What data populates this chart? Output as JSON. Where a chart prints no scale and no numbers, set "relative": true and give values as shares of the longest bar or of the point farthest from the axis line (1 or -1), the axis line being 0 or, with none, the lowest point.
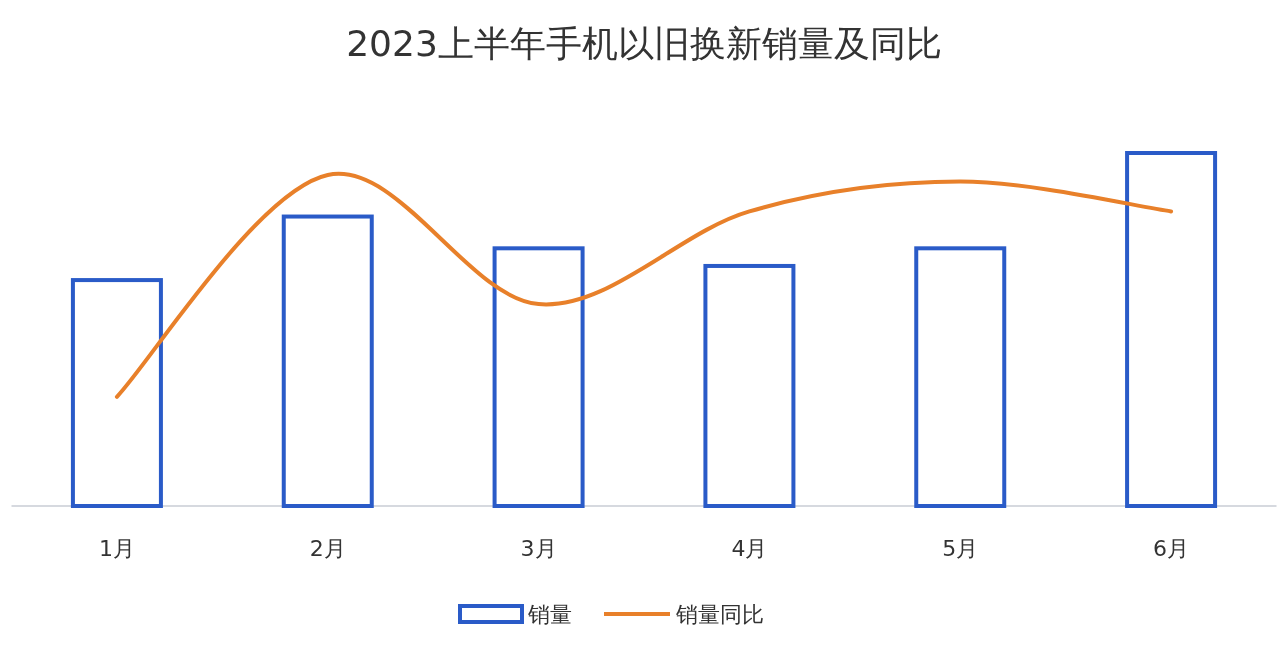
{
  "chart_data": {
    "type": "bar",
    "title": "2023上半年手机以旧换新销量及同比",
    "categories": [
      "1月",
      "2月",
      "3月",
      "4月",
      "5月",
      "6月"
    ],
    "relative": true,
    "legend": "bottom",
    "series": [
      {
        "name": "销量",
        "color": "#2a5bc8",
        "values": [
          0.64,
          0.82,
          0.73,
          0.68,
          0.73,
          1
        ]
      },
      {
        "name": "销量同比",
        "type": "line",
        "axis": "y2",
        "color": "#e8802a",
        "values": [
          0.33,
          1,
          0.61,
          0.89,
          0.98,
          0.89
        ]
      }
    ]
  }
}
